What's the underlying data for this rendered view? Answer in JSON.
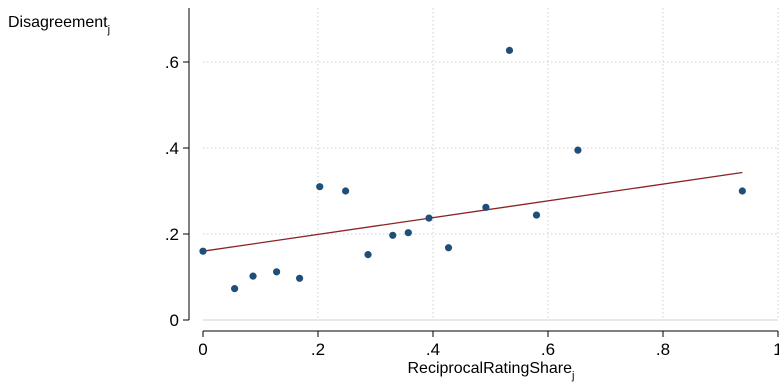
{
  "chart_data": {
    "type": "scatter",
    "ylabel": "Disagreement",
    "ylabel_subscript": "j",
    "xlabel": "ReciprocalRatingShare",
    "xlabel_subscript": "j",
    "xlim": [
      0,
      1
    ],
    "ylim": [
      0,
      0.72
    ],
    "x_ticks": [
      0,
      0.2,
      0.4,
      0.6,
      0.8,
      1
    ],
    "x_tick_labels": [
      "0",
      ".2",
      ".4",
      ".6",
      ".8",
      "1"
    ],
    "y_ticks": [
      0,
      0.2,
      0.4,
      0.6
    ],
    "y_tick_labels": [
      "0",
      ".2",
      ".4",
      ".6"
    ],
    "grid": true,
    "points": [
      {
        "x": 0.0,
        "y": 0.16
      },
      {
        "x": 0.055,
        "y": 0.073
      },
      {
        "x": 0.087,
        "y": 0.102
      },
      {
        "x": 0.128,
        "y": 0.112
      },
      {
        "x": 0.168,
        "y": 0.097
      },
      {
        "x": 0.203,
        "y": 0.31
      },
      {
        "x": 0.248,
        "y": 0.3
      },
      {
        "x": 0.287,
        "y": 0.152
      },
      {
        "x": 0.33,
        "y": 0.197
      },
      {
        "x": 0.357,
        "y": 0.203
      },
      {
        "x": 0.393,
        "y": 0.237
      },
      {
        "x": 0.427,
        "y": 0.168
      },
      {
        "x": 0.492,
        "y": 0.262
      },
      {
        "x": 0.533,
        "y": 0.627
      },
      {
        "x": 0.58,
        "y": 0.244
      },
      {
        "x": 0.652,
        "y": 0.395
      },
      {
        "x": 0.938,
        "y": 0.3
      }
    ],
    "fit_line": {
      "x": [
        0,
        0.938
      ],
      "y": [
        0.16,
        0.343
      ]
    },
    "colors": {
      "points": "#1f4e79",
      "fit_line": "#8b2323",
      "grid": "#d0d0d0",
      "axis": "#000000"
    }
  }
}
